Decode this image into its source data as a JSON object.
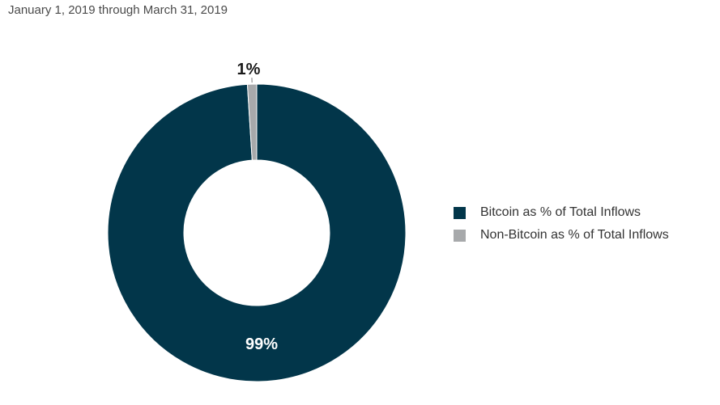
{
  "chart_data": {
    "type": "pie",
    "subtitle": "January 1, 2019 through March 31, 2019",
    "categories": [
      "Bitcoin as % of Total Inflows",
      "Non-Bitcoin as % of Total Inflows"
    ],
    "values": [
      99,
      1
    ],
    "value_labels": [
      "99%",
      "1%"
    ],
    "colors": [
      "#02364a",
      "#a7a9ab"
    ],
    "donut": true,
    "legend_position": "right"
  }
}
